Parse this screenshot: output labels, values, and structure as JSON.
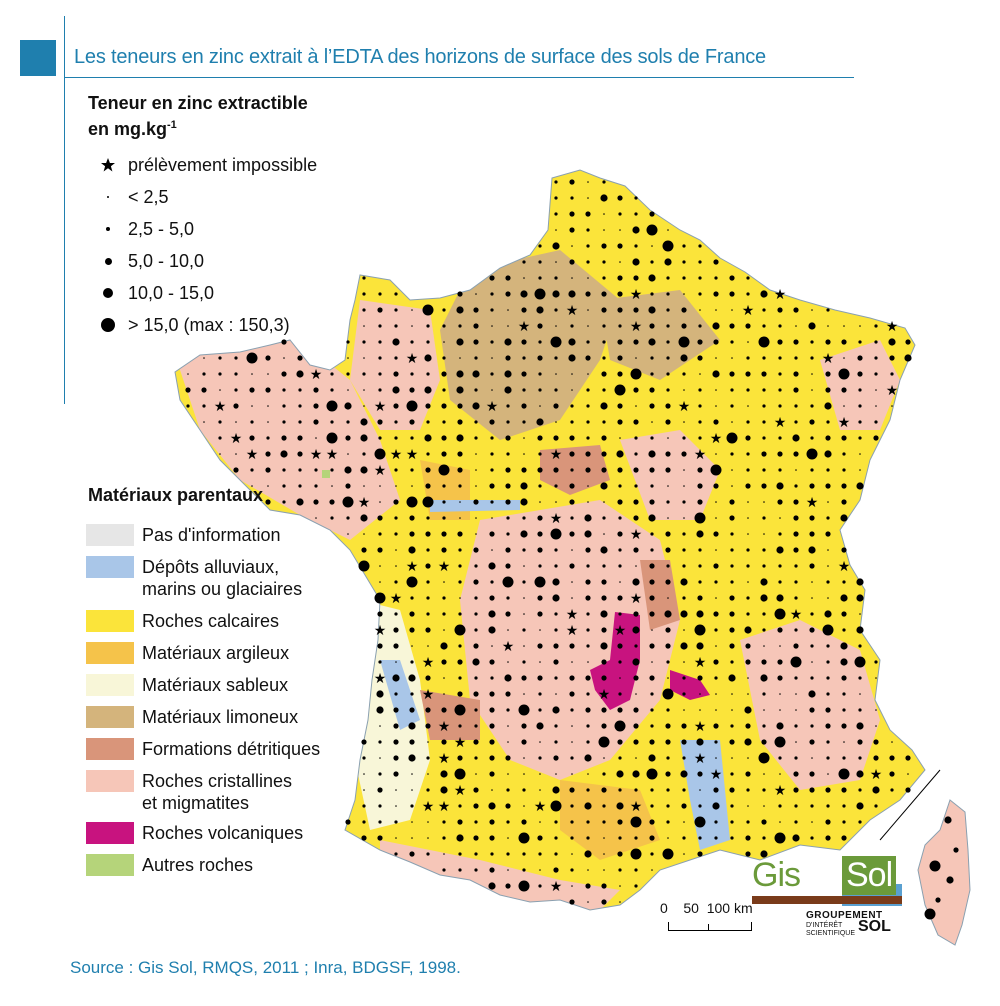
{
  "title": "Les teneurs en zinc extrait à l’EDTA des horizons de surface des sols de France",
  "zinc_legend": {
    "title_line1": "Teneur en zinc extractible",
    "title_line2": "en mg.kg",
    "title_exponent": "-1",
    "items": [
      {
        "symbol": "star",
        "label": "prélèvement impossible"
      },
      {
        "symbol": "dot-xs",
        "label": "< 2,5"
      },
      {
        "symbol": "dot-s",
        "label": "2,5 - 5,0"
      },
      {
        "symbol": "dot-m",
        "label": "5,0 - 10,0"
      },
      {
        "symbol": "dot-l",
        "label": "10,0 - 15,0"
      },
      {
        "symbol": "dot-xl",
        "label": "> 15,0  (max : 150,3)"
      }
    ]
  },
  "materials_legend": {
    "title": "Matériaux parentaux",
    "items": [
      {
        "label": "Pas d'information",
        "label2": "",
        "color": "#e6e6e6"
      },
      {
        "label": "Dépôts alluviaux,",
        "label2": "marins ou glaciaires",
        "color": "#a9c6e8"
      },
      {
        "label": "Roches calcaires",
        "label2": "",
        "color": "#fbe43a"
      },
      {
        "label": "Matériaux argileux",
        "label2": "",
        "color": "#f5c34a"
      },
      {
        "label": "Matériaux sableux",
        "label2": "",
        "color": "#f8f6d8"
      },
      {
        "label": "Matériaux limoneux",
        "label2": "",
        "color": "#d4b47c"
      },
      {
        "label": "Formations détritiques",
        "label2": "",
        "color": "#d9957a"
      },
      {
        "label": "Roches cristallines",
        "label2": "et migmatites",
        "color": "#f6c6b8"
      },
      {
        "label": "Roches volcaniques",
        "label2": "",
        "color": "#c8137f"
      },
      {
        "label": "Autres roches",
        "label2": "",
        "color": "#b5d47a"
      }
    ]
  },
  "scale": {
    "labels": "0    50  100 km"
  },
  "logo": {
    "gis": "Gis",
    "sol": "Sol",
    "sub1": "GROUPEMENT",
    "sub2a": "D'INTÉRÊT",
    "sub2b": "SCIENTIFIQUE",
    "sub3": "SOL"
  },
  "source": "Source : Gis Sol, RMQS, 2011 ; Inra, BDGSF, 1998."
}
